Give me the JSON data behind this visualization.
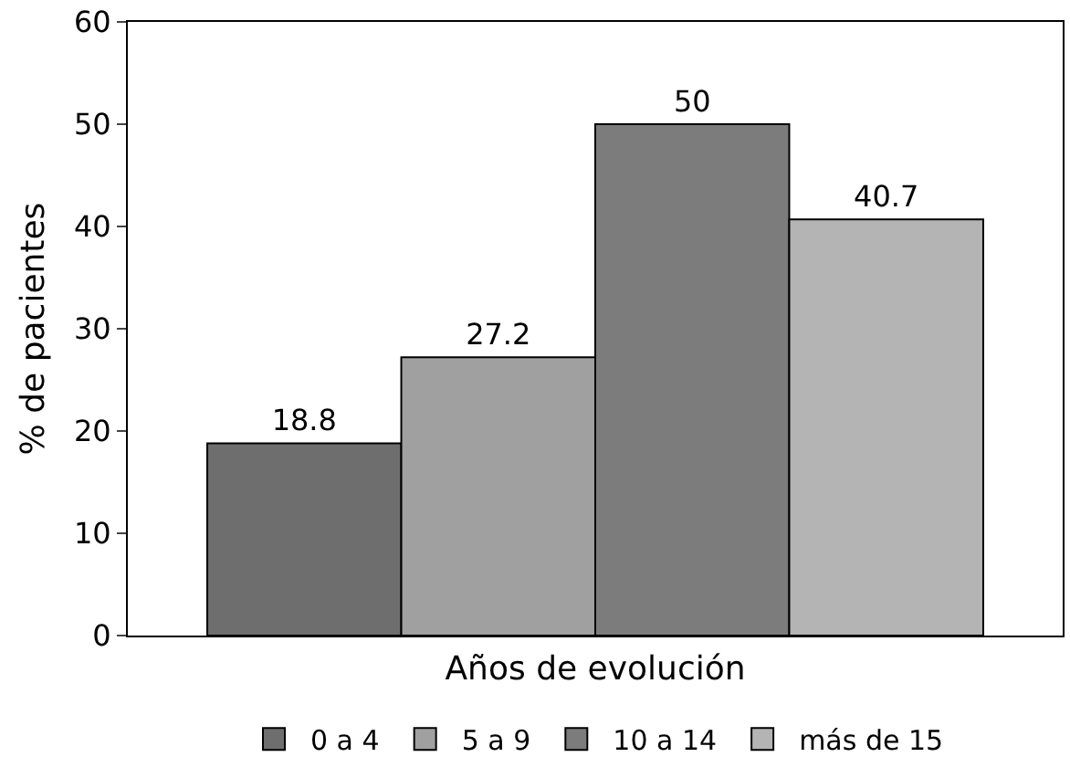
{
  "chart_data": {
    "type": "bar",
    "xlabel": "Años de evolución",
    "ylabel": "% de pacientes",
    "categories": [
      null
    ],
    "series": [
      {
        "name": "0 a 4",
        "color": "#6e6e6e",
        "values": [
          18.8
        ]
      },
      {
        "name": "5 a 9",
        "color": "#a0a0a0",
        "values": [
          27.2
        ]
      },
      {
        "name": "10 a 14",
        "color": "#7c7c7c",
        "values": [
          50
        ]
      },
      {
        "name": "más de 15",
        "color": "#b4b4b4",
        "values": [
          40.7
        ]
      }
    ],
    "ylim": [
      0,
      60
    ],
    "yticks": [
      0,
      10,
      20,
      30,
      40,
      50,
      60
    ],
    "grid": false,
    "legend": "bottom",
    "data_labels": true
  }
}
